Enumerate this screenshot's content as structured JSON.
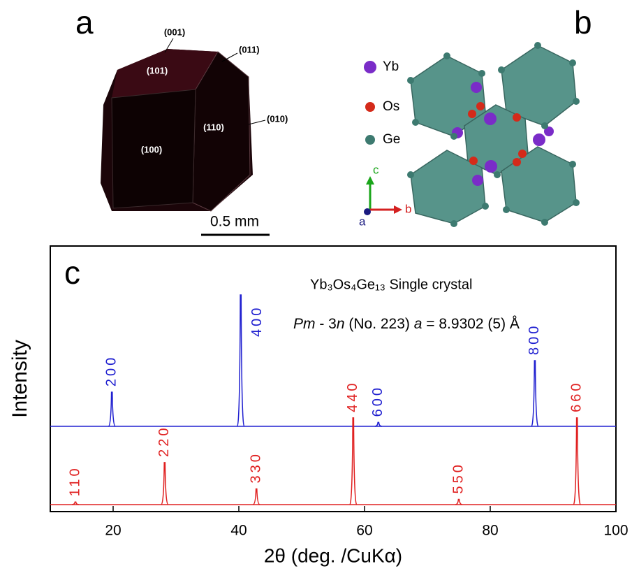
{
  "panels": {
    "a": {
      "letter": "a",
      "facets": [
        "(001)",
        "(011)",
        "(101)",
        "(110)",
        "(010)",
        "(100)"
      ],
      "scale_bar": "0.5 mm"
    },
    "b": {
      "letter": "b",
      "legend": [
        {
          "name": "Yb",
          "color": "#7a2cc8"
        },
        {
          "name": "Os",
          "color": "#d42a1a"
        },
        {
          "name": "Ge",
          "color": "#3d7a70"
        }
      ],
      "axes": [
        "c",
        "b",
        "a"
      ]
    }
  },
  "chart_data": {
    "type": "peaks",
    "panel_label": "c",
    "annotations": [
      "Yb₃Os₄Ge₁₃  Single crystal"
    ],
    "lattice": [
      "Pm",
      " - 3",
      "n",
      " (No. 223)  ",
      "a",
      " = 8.9302 (5) Å"
    ],
    "x_label": "2θ (deg. /CuKα)",
    "y_label": "Intensity",
    "xlim": [
      10,
      100
    ],
    "xticks": [
      20,
      40,
      60,
      80,
      100
    ],
    "series": [
      {
        "color": "#2020d0",
        "x": [
          19.8,
          40.3,
          62.2,
          87.1
        ],
        "values": [
          26,
          100,
          3,
          50
        ],
        "labels": [
          "200",
          "400",
          "600",
          "800"
        ]
      },
      {
        "color": "#e02020",
        "x": [
          14.0,
          28.2,
          42.8,
          58.2,
          75.0,
          93.8
        ],
        "values": [
          2,
          32,
          12,
          66,
          4,
          66
        ],
        "labels": [
          "110",
          "220",
          "330",
          "440",
          "550",
          "660"
        ]
      }
    ]
  }
}
